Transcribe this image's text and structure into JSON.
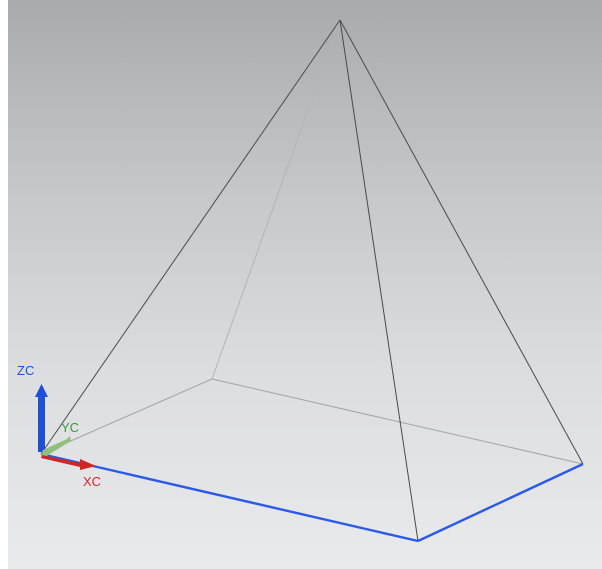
{
  "viewport": {
    "background_top": "#a9aaac",
    "background_bottom": "#e9eaec"
  },
  "wcs": {
    "zc_label": "ZC",
    "yc_label": "YC",
    "xc_label": "XC",
    "zc_color": "#1f4fd6",
    "yc_color": "#3b9a3b",
    "xc_color": "#d02626"
  },
  "colors": {
    "visible_edge": "#4a4a4a",
    "hidden_edge": "#9a9a9a",
    "selected_edge": "#2b59e8"
  }
}
